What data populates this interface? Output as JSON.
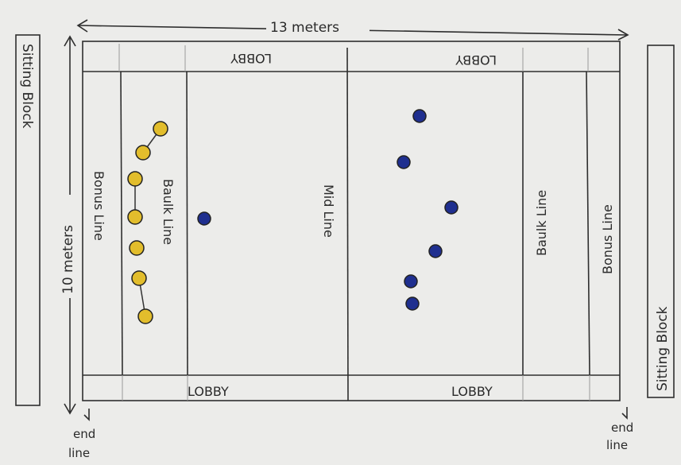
{
  "labels": {
    "width": "13 meters",
    "height": "10 meters",
    "sitting_block_left": "Sitting Block",
    "sitting_block_right": "Sitting Block",
    "lobby_top_left": "LOBBY",
    "lobby_top_right": "LOBBY",
    "lobby_bottom_left": "LOBBY",
    "lobby_bottom_right": "LOBBY",
    "bonus_line_left": "Bonus Line",
    "baulk_line_left": "Baulk Line",
    "mid_line": "Mid Line",
    "baulk_line_right": "Baulk Line",
    "bonus_line_right": "Bonus Line",
    "end_line_left": [
      "end",
      "line"
    ],
    "end_line_right": [
      "end",
      "line"
    ]
  },
  "colors": {
    "background": "#ececea",
    "court": "#f3f3f1",
    "team_yellow": "#e2bd2c",
    "team_blue": "#1f2f8f",
    "line": "#2e2e2e"
  },
  "players": {
    "yellow_team_count": 7,
    "blue_team_count": 7
  }
}
